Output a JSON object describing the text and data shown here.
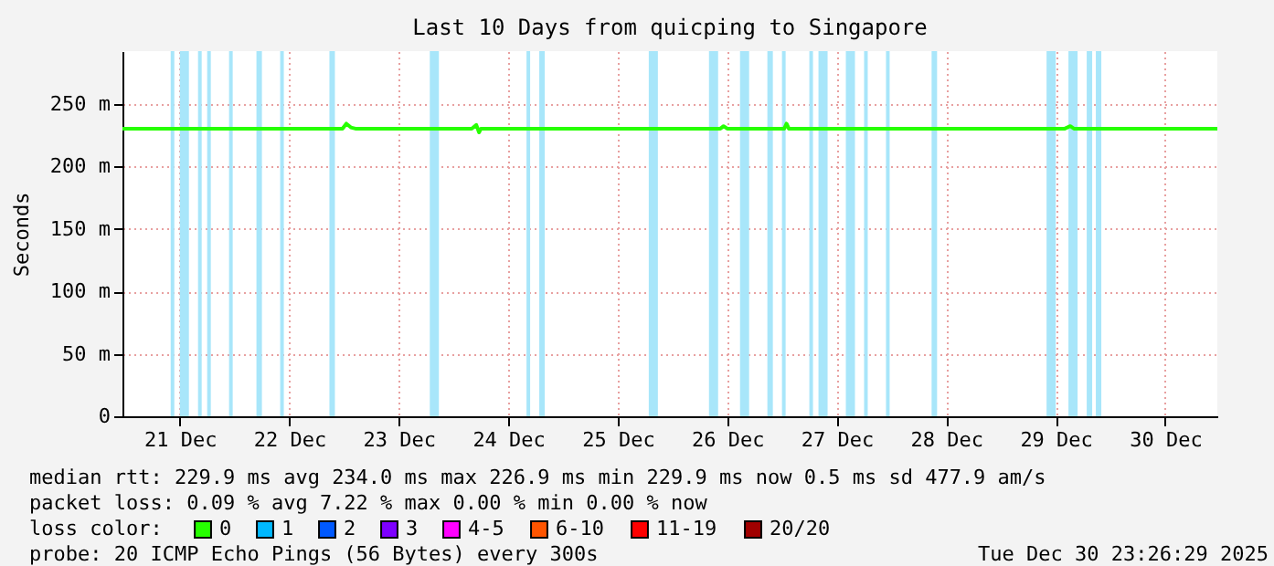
{
  "chart_data": {
    "type": "line",
    "title": "Last 10 Days from quicping to Singapore",
    "ylabel": "Seconds",
    "x": [
      "2025-12-20T23:26",
      "2025-12-22T23:40",
      "2025-12-23T00:30",
      "2025-12-23T01:30",
      "2025-12-23T02:30",
      "2025-12-24T04:00",
      "2025-12-24T05:00",
      "2025-12-24T05:36",
      "2025-12-24T06:00",
      "2025-12-26T10:30",
      "2025-12-26T11:12",
      "2025-12-26T12:00",
      "2025-12-27T00:30",
      "2025-12-27T01:00",
      "2025-12-27T01:30",
      "2025-12-29T14:00",
      "2025-12-29T15:12",
      "2025-12-29T16:00",
      "2025-12-30T23:26"
    ],
    "series": [
      {
        "name": "0",
        "color": "#26ff00",
        "values": [
          230,
          230,
          234,
          231,
          230,
          230,
          233,
          227,
          230,
          230,
          232,
          230,
          230,
          234,
          230,
          230,
          232,
          230,
          230
        ]
      },
      {
        "name": "1",
        "color": "#00b8ff",
        "values": [
          null,
          null,
          null,
          null,
          null,
          null,
          null,
          null,
          null,
          null,
          null,
          null,
          null,
          null,
          null,
          null,
          null,
          null,
          null
        ]
      },
      {
        "name": "2",
        "color": "#0059ff",
        "values": [
          null,
          null,
          null,
          null,
          null,
          null,
          null,
          null,
          null,
          null,
          null,
          null,
          null,
          null,
          null,
          null,
          null,
          null,
          null
        ]
      },
      {
        "name": "3",
        "color": "#7e00ff",
        "values": [
          null,
          null,
          null,
          null,
          null,
          null,
          null,
          null,
          null,
          null,
          null,
          null,
          null,
          null,
          null,
          null,
          null,
          null,
          null
        ]
      },
      {
        "name": "4-5",
        "color": "#ff00ff",
        "values": [
          null,
          null,
          null,
          null,
          null,
          null,
          null,
          null,
          null,
          null,
          null,
          null,
          null,
          null,
          null,
          null,
          null,
          null,
          null
        ]
      },
      {
        "name": "6-10",
        "color": "#ff5500",
        "values": [
          null,
          null,
          null,
          null,
          null,
          null,
          null,
          null,
          null,
          null,
          null,
          null,
          null,
          null,
          null,
          null,
          null,
          null,
          null
        ]
      },
      {
        "name": "11-19",
        "color": "#ff0000",
        "values": [
          null,
          null,
          null,
          null,
          null,
          null,
          null,
          null,
          null,
          null,
          null,
          null,
          null,
          null,
          null,
          null,
          null,
          null,
          null
        ]
      },
      {
        "name": "20/20",
        "color": "#a10000",
        "values": [
          null,
          null,
          null,
          null,
          null,
          null,
          null,
          null,
          null,
          null,
          null,
          null,
          null,
          null,
          null,
          null,
          null,
          null,
          null
        ]
      }
    ],
    "legend_title": "loss color:",
    "legend": "bottom",
    "xlim": [
      "2025-12-20T23:26",
      "2025-12-30T23:26"
    ],
    "xticks": [
      {
        "value": "2025-12-21T12:00",
        "label": "21 Dec"
      },
      {
        "value": "2025-12-22T12:00",
        "label": "22 Dec"
      },
      {
        "value": "2025-12-23T12:00",
        "label": "23 Dec"
      },
      {
        "value": "2025-12-24T12:00",
        "label": "24 Dec"
      },
      {
        "value": "2025-12-25T12:00",
        "label": "25 Dec"
      },
      {
        "value": "2025-12-26T12:00",
        "label": "26 Dec"
      },
      {
        "value": "2025-12-27T12:00",
        "label": "27 Dec"
      },
      {
        "value": "2025-12-28T12:00",
        "label": "28 Dec"
      },
      {
        "value": "2025-12-29T12:00",
        "label": "29 Dec"
      },
      {
        "value": "2025-12-30T12:00",
        "label": "30 Dec"
      }
    ],
    "ylim": [
      0,
      292
    ],
    "yticks": [
      0,
      {
        "value": 50,
        "label": "50 m"
      },
      {
        "value": 100,
        "label": "100 m"
      },
      {
        "value": 150,
        "label": "150 m"
      },
      {
        "value": 200,
        "label": "200 m"
      },
      {
        "value": 250,
        "label": "250 m"
      }
    ],
    "grid": true,
    "bands": [
      {
        "axis": "x",
        "from": "2025-12-21T10:00",
        "to": "2025-12-21T10:48",
        "color": "#a8e6fa"
      },
      {
        "axis": "x",
        "from": "2025-12-21T12:00",
        "to": "2025-12-21T14:00",
        "color": "#a8e6fa"
      },
      {
        "axis": "x",
        "from": "2025-12-21T16:00",
        "to": "2025-12-21T16:48",
        "color": "#a8e6fa"
      },
      {
        "axis": "x",
        "from": "2025-12-21T18:00",
        "to": "2025-12-21T18:48",
        "color": "#a8e6fa"
      },
      {
        "axis": "x",
        "from": "2025-12-21T22:48",
        "to": "2025-12-21T23:36",
        "color": "#a8e6fa"
      },
      {
        "axis": "x",
        "from": "2025-12-22T04:48",
        "to": "2025-12-22T06:00",
        "color": "#a8e6fa"
      },
      {
        "axis": "x",
        "from": "2025-12-22T10:00",
        "to": "2025-12-22T10:48",
        "color": "#a8e6fa"
      },
      {
        "axis": "x",
        "from": "2025-12-22T20:48",
        "to": "2025-12-22T22:00",
        "color": "#a8e6fa"
      },
      {
        "axis": "x",
        "from": "2025-12-23T18:48",
        "to": "2025-12-23T20:48",
        "color": "#a8e6fa"
      },
      {
        "axis": "x",
        "from": "2025-12-24T16:00",
        "to": "2025-12-24T16:48",
        "color": "#a8e6fa"
      },
      {
        "axis": "x",
        "from": "2025-12-24T18:48",
        "to": "2025-12-24T20:00",
        "color": "#a8e6fa"
      },
      {
        "axis": "x",
        "from": "2025-12-25T18:48",
        "to": "2025-12-25T20:48",
        "color": "#a8e6fa"
      },
      {
        "axis": "x",
        "from": "2025-12-26T08:00",
        "to": "2025-12-26T10:00",
        "color": "#a8e6fa"
      },
      {
        "axis": "x",
        "from": "2025-12-26T14:48",
        "to": "2025-12-26T16:48",
        "color": "#a8e6fa"
      },
      {
        "axis": "x",
        "from": "2025-12-26T20:48",
        "to": "2025-12-26T22:00",
        "color": "#a8e6fa"
      },
      {
        "axis": "x",
        "from": "2025-12-27T00:00",
        "to": "2025-12-27T00:48",
        "color": "#a8e6fa"
      },
      {
        "axis": "x",
        "from": "2025-12-27T06:00",
        "to": "2025-12-27T06:48",
        "color": "#a8e6fa"
      },
      {
        "axis": "x",
        "from": "2025-12-27T08:00",
        "to": "2025-12-27T10:00",
        "color": "#a8e6fa"
      },
      {
        "axis": "x",
        "from": "2025-12-27T14:00",
        "to": "2025-12-27T16:00",
        "color": "#a8e6fa"
      },
      {
        "axis": "x",
        "from": "2025-12-27T18:00",
        "to": "2025-12-27T18:48",
        "color": "#a8e6fa"
      },
      {
        "axis": "x",
        "from": "2025-12-27T22:48",
        "to": "2025-12-27T23:36",
        "color": "#a8e6fa"
      },
      {
        "axis": "x",
        "from": "2025-12-28T08:48",
        "to": "2025-12-28T10:00",
        "color": "#a8e6fa"
      },
      {
        "axis": "x",
        "from": "2025-12-29T10:00",
        "to": "2025-12-29T12:00",
        "color": "#a8e6fa"
      },
      {
        "axis": "x",
        "from": "2025-12-29T14:48",
        "to": "2025-12-29T16:48",
        "color": "#a8e6fa"
      },
      {
        "axis": "x",
        "from": "2025-12-29T18:48",
        "to": "2025-12-29T20:00",
        "color": "#a8e6fa"
      },
      {
        "axis": "x",
        "from": "2025-12-29T20:48",
        "to": "2025-12-29T22:00",
        "color": "#a8e6fa"
      }
    ],
    "annotations": [
      "median rtt:  229.9 ms avg  234.0 ms max  226.9 ms min  229.9 ms now  0.5 ms sd  477.9   am/s",
      "packet loss: 0.09 % avg  7.22 % max  0.00 % min  0.00 % now",
      "probe:       20 ICMP Echo Pings (56 Bytes) every 300s",
      "Tue Dec 30 23:26:29 2025"
    ]
  }
}
